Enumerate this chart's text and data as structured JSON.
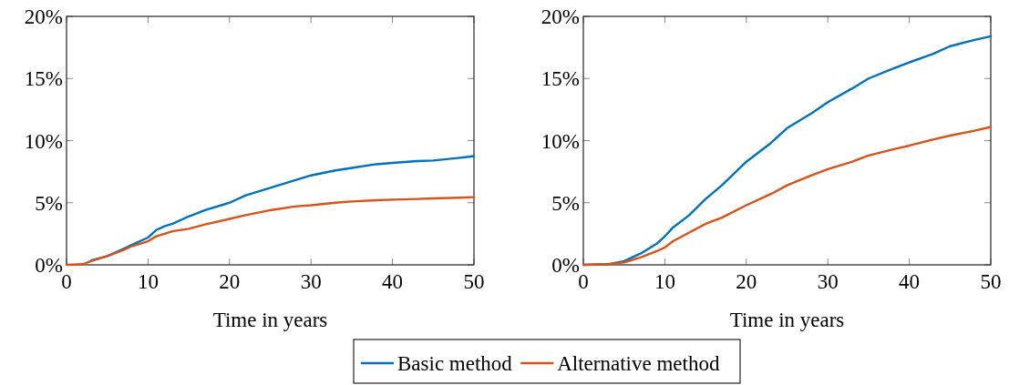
{
  "chart_data": [
    {
      "type": "line",
      "xlabel": "Time in years",
      "x": [
        0,
        2,
        3,
        5,
        7,
        8,
        10,
        11,
        12,
        13,
        15,
        17,
        20,
        22,
        25,
        28,
        30,
        33,
        35,
        38,
        40,
        43,
        45,
        48,
        50
      ],
      "series": [
        {
          "name": "Basic method",
          "color": "#0072bd",
          "x": [
            3,
            5,
            7,
            8,
            10,
            11,
            12,
            13,
            15,
            17,
            20,
            22,
            25,
            28,
            30,
            33,
            35,
            38,
            40,
            43,
            45,
            48,
            50
          ],
          "values": [
            0.35,
            0.7,
            1.3,
            1.6,
            2.2,
            2.8,
            3.1,
            3.3,
            3.9,
            4.4,
            5.0,
            5.6,
            6.2,
            6.8,
            7.2,
            7.6,
            7.8,
            8.1,
            8.2,
            8.35,
            8.4,
            8.6,
            8.75
          ]
        },
        {
          "name": "Alternative method",
          "color": "#d95319",
          "values": [
            0,
            0.05,
            0.3,
            0.7,
            1.2,
            1.5,
            1.9,
            2.3,
            2.5,
            2.7,
            2.9,
            3.25,
            3.7,
            4.0,
            4.4,
            4.7,
            4.8,
            5.0,
            5.1,
            5.2,
            5.25,
            5.3,
            5.35,
            5.4,
            5.45
          ]
        }
      ],
      "xlim": [
        0,
        50
      ],
      "xticks": [
        0,
        10,
        20,
        30,
        40,
        50
      ],
      "ylim": [
        0,
        20
      ],
      "yticks": [
        {
          "value": 0,
          "label": "0%"
        },
        {
          "value": 5,
          "label": "5%"
        },
        {
          "value": 10,
          "label": "10%"
        },
        {
          "value": 15,
          "label": "15%"
        },
        {
          "value": 20,
          "label": "20%"
        }
      ],
      "grid": false,
      "legend": "bottom"
    },
    {
      "type": "line",
      "xlabel": "Time in years",
      "x": [
        0,
        3,
        5,
        7,
        9,
        10,
        11,
        13,
        15,
        17,
        20,
        23,
        25,
        28,
        30,
        33,
        35,
        38,
        40,
        43,
        45,
        48,
        50
      ],
      "series": [
        {
          "color": "#0072bd",
          "values": [
            0,
            0.05,
            0.3,
            0.9,
            1.7,
            2.3,
            3.0,
            4.0,
            5.3,
            6.4,
            8.3,
            9.8,
            11.0,
            12.2,
            13.1,
            14.2,
            15.0,
            15.8,
            16.3,
            17.0,
            17.6,
            18.1,
            18.4
          ]
        },
        {
          "color": "#d95319",
          "values": [
            0,
            0.05,
            0.2,
            0.6,
            1.1,
            1.4,
            1.9,
            2.6,
            3.3,
            3.8,
            4.8,
            5.7,
            6.4,
            7.2,
            7.7,
            8.3,
            8.8,
            9.3,
            9.6,
            10.1,
            10.4,
            10.8,
            11.1
          ]
        }
      ],
      "xlim": [
        0,
        50
      ],
      "xticks": [
        0,
        10,
        20,
        30,
        40,
        50
      ],
      "ylim": [
        0,
        20
      ],
      "yticks": [
        {
          "value": 0,
          "label": "0%"
        },
        {
          "value": 5,
          "label": "5%"
        },
        {
          "value": 10,
          "label": "10%"
        },
        {
          "value": 15,
          "label": "15%"
        },
        {
          "value": 20,
          "label": "20%"
        }
      ],
      "grid": false
    }
  ]
}
